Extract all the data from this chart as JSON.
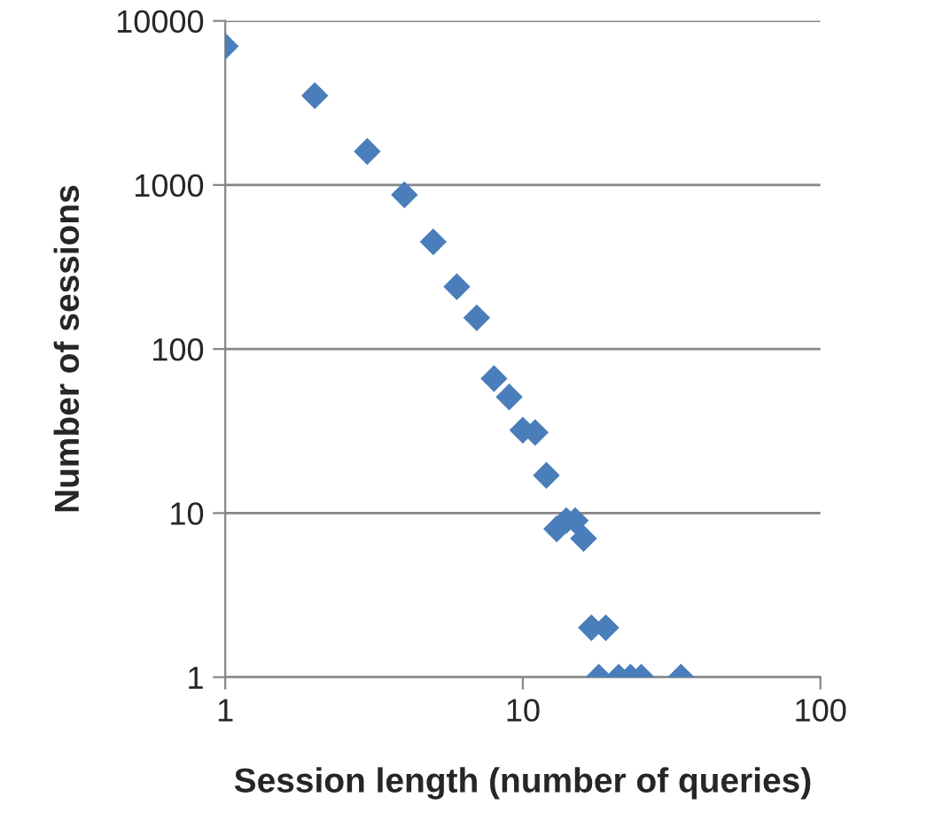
{
  "chart_data": {
    "type": "scatter",
    "xlabel": "Session length (number of queries)",
    "ylabel": "Number of sessions",
    "log": "xy",
    "xlim": [
      1,
      100
    ],
    "xticks": [
      1,
      10,
      100
    ],
    "ylim": [
      1,
      10000
    ],
    "yticks": [
      1,
      10,
      100,
      1000,
      10000
    ],
    "grid": "y",
    "marker": "diamond",
    "series": [
      {
        "color": "#4a7ebb",
        "x": [
          1,
          2,
          3,
          4,
          5,
          6,
          7,
          8,
          9,
          10,
          11,
          12,
          13,
          14,
          15,
          16,
          17,
          19,
          18,
          21,
          23,
          25,
          34
        ],
        "values": [
          7000,
          3500,
          1600,
          870,
          450,
          240,
          155,
          66,
          51,
          32,
          31,
          17,
          8,
          9,
          9,
          7,
          2,
          2,
          1,
          1,
          1,
          1,
          1
        ]
      }
    ]
  }
}
